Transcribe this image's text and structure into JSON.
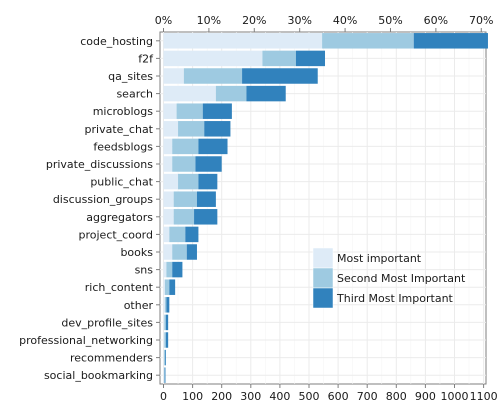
{
  "chart_data": {
    "type": "bar",
    "orientation": "horizontal",
    "stacked": true,
    "categories": [
      "code_hosting",
      "f2f",
      "qa_sites",
      "search",
      "microblogs",
      "private_chat",
      "feedsblogs",
      "private_discussions",
      "public_chat",
      "discussion_groups",
      "aggregators",
      "project_coord",
      "books",
      "sns",
      "rich_content",
      "other",
      "dev_profile_sites",
      "professional_networking",
      "recommenders",
      "social_bookmarking"
    ],
    "series": [
      {
        "name": "Most important",
        "color": "#deebf7",
        "values": [
          545,
          340,
          70,
          180,
          45,
          50,
          30,
          30,
          50,
          35,
          35,
          20,
          30,
          10,
          5,
          5,
          3,
          3,
          2,
          2
        ]
      },
      {
        "name": "Second Most Important",
        "color": "#9ecae1",
        "values": [
          315,
          115,
          200,
          105,
          90,
          90,
          90,
          80,
          70,
          80,
          70,
          55,
          50,
          20,
          15,
          5,
          5,
          5,
          3,
          2
        ]
      },
      {
        "name": "Third Most Important",
        "color": "#3182bd",
        "values": [
          255,
          100,
          260,
          135,
          100,
          90,
          100,
          90,
          65,
          65,
          80,
          45,
          35,
          35,
          20,
          10,
          8,
          8,
          3,
          2
        ]
      }
    ],
    "xlim": [
      0,
      1100
    ],
    "x_ticks_bottom": [
      "0",
      "100",
      "200",
      "300",
      "400",
      "500",
      "600",
      "700",
      "800",
      "900",
      "1000",
      "1100"
    ],
    "x_tick_values_bottom": [
      0,
      100,
      200,
      300,
      400,
      500,
      600,
      700,
      800,
      900,
      1000,
      1100
    ],
    "x_ticks_top": [
      "0%",
      "10%",
      "20%",
      "30%",
      "40%",
      "50%",
      "60%",
      "70%"
    ],
    "x_tick_values_top": [
      0,
      156,
      312,
      468,
      624,
      780,
      936,
      1092
    ],
    "legend": [
      "Most important",
      "Second Most Important",
      "Third Most Important"
    ],
    "legend_position": "lower-right",
    "grid": true,
    "title": "",
    "xlabel": "",
    "ylabel": ""
  }
}
